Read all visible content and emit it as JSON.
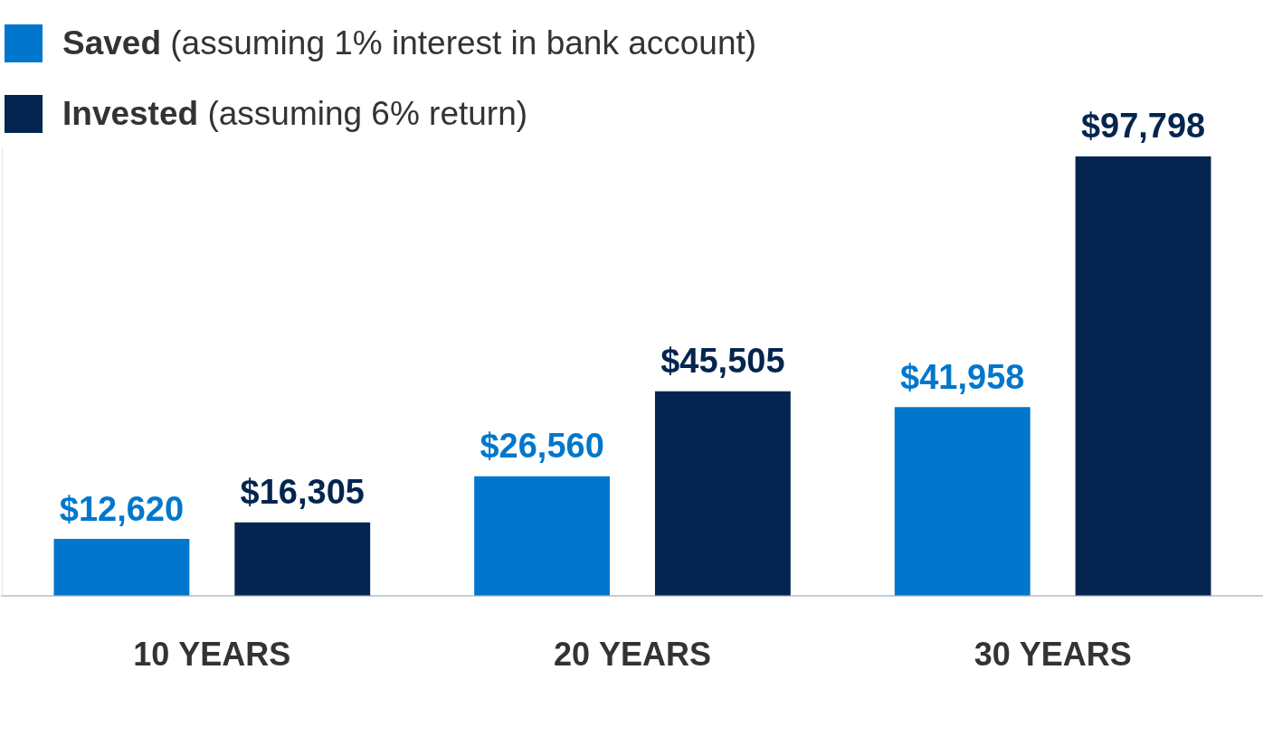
{
  "chart_data": {
    "type": "bar",
    "categories": [
      "10 YEARS",
      "20 YEARS",
      "30 YEARS"
    ],
    "series": [
      {
        "name": "Saved (assuming 1% interest in bank account)",
        "color": "#0077cc",
        "values": [
          12620,
          26560,
          41958
        ],
        "value_labels": [
          "$12,620",
          "$26,560",
          "$41,958"
        ]
      },
      {
        "name": "Invested (assuming 6% return)",
        "color": "#03254f",
        "values": [
          16305,
          45505,
          97798
        ],
        "value_labels": [
          "$16,305",
          "$45,505",
          "$97,798"
        ]
      }
    ],
    "ylim": [
      0,
      100000
    ],
    "grid": false,
    "legend": "top-left",
    "data_labels": true,
    "tick_labels": "x"
  }
}
